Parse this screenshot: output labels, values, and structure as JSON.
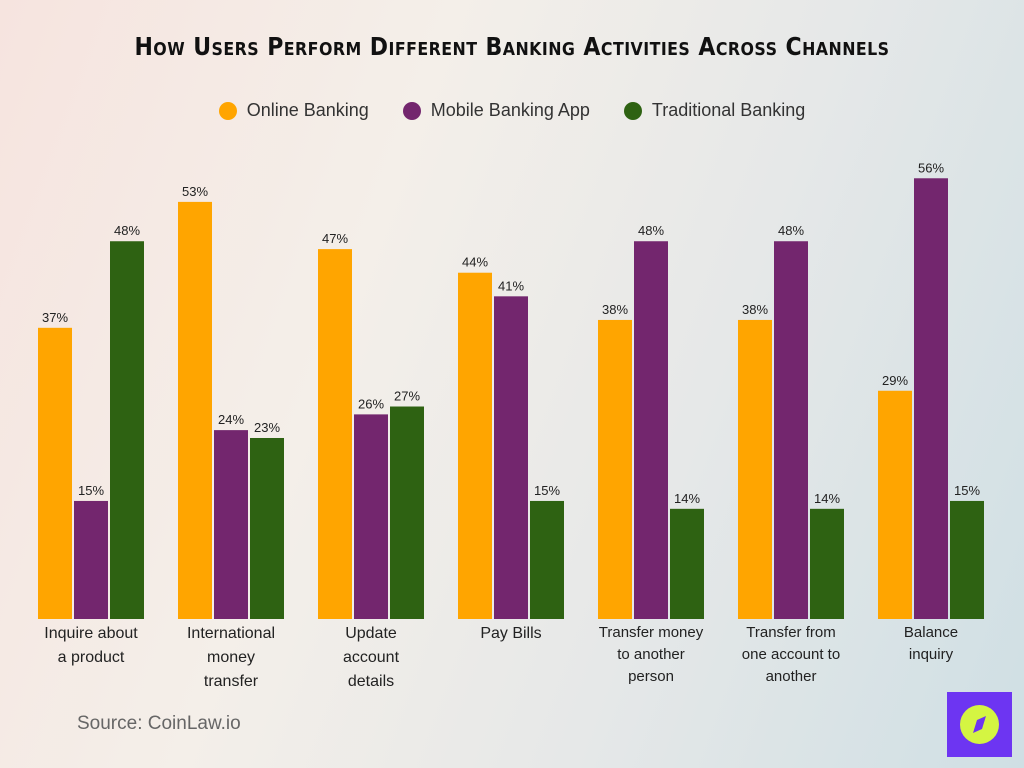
{
  "chart_data": {
    "type": "bar",
    "title": "How Users Perform Different Banking Activities Across Channels",
    "categories": [
      "Inquire about\na product",
      "International\nmoney\ntransfer",
      "Update\naccount\ndetails",
      "Pay Bills",
      "Transfer money\nto another\nperson",
      "Transfer from\none account to\nanother",
      "Balance\ninquiry"
    ],
    "series": [
      {
        "name": "Online Banking",
        "color": "#ffa500",
        "values": [
          37,
          53,
          47,
          44,
          38,
          38,
          29
        ]
      },
      {
        "name": "Mobile Banking App",
        "color": "#73266e",
        "values": [
          15,
          24,
          26,
          41,
          48,
          48,
          56
        ]
      },
      {
        "name": "Traditional Banking",
        "color": "#2e6212",
        "values": [
          48,
          23,
          27,
          15,
          14,
          14,
          15
        ]
      }
    ],
    "value_suffix": "%",
    "ylim": [
      0,
      60
    ],
    "grid": false,
    "legend_position": "top"
  },
  "source": "Source: CoinLaw.io",
  "logo": {
    "icon": "compass-icon",
    "bg": "#6d35f2",
    "fg": "#d4f542"
  }
}
